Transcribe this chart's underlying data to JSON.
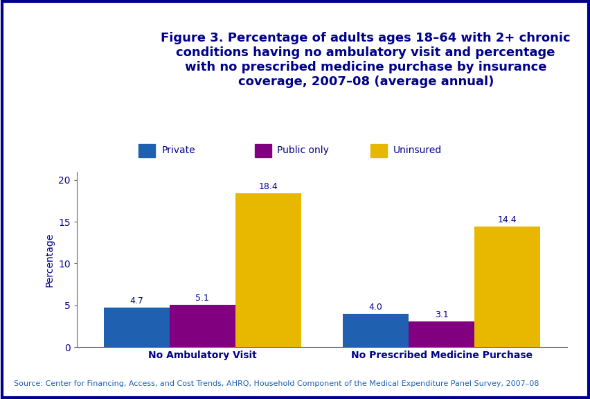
{
  "title": "Figure 3. Percentage of adults ages 18–64 with 2+ chronic\nconditions having no ambulatory visit and percentage\nwith no prescribed medicine purchase by insurance\ncoverage, 2007–08 (average annual)",
  "categories": [
    "No Ambulatory Visit",
    "No Prescribed Medicine Purchase"
  ],
  "series": [
    {
      "label": "Private",
      "color": "#2060b0",
      "values": [
        4.7,
        4.0
      ]
    },
    {
      "label": "Public only",
      "color": "#800080",
      "values": [
        5.1,
        3.1
      ]
    },
    {
      "label": "Uninsured",
      "color": "#e8b800",
      "values": [
        18.4,
        14.4
      ]
    }
  ],
  "ylabel": "Percentage",
  "ylim": [
    0,
    21
  ],
  "yticks": [
    0,
    5,
    10,
    15,
    20
  ],
  "bar_width": 0.22,
  "title_color": "#00008B",
  "axis_label_color": "#00008B",
  "tick_label_color": "#00008B",
  "legend_color": "#00008B",
  "source_text": "Source: Center for Financing, Access, and Cost Trends, AHRQ, Household Component of the Medical Expenditure Panel Survey, 2007–08",
  "source_color": "#2060b0",
  "bg_color": "#ffffff",
  "chart_bg_color": "#ffffff",
  "outer_border_color": "#00008B",
  "divider_color": "#00008B",
  "value_label_color": "#00008B",
  "value_label_fontsize": 9,
  "title_fontsize": 13,
  "ylabel_fontsize": 10,
  "tick_fontsize": 10,
  "legend_fontsize": 10,
  "source_fontsize": 8
}
